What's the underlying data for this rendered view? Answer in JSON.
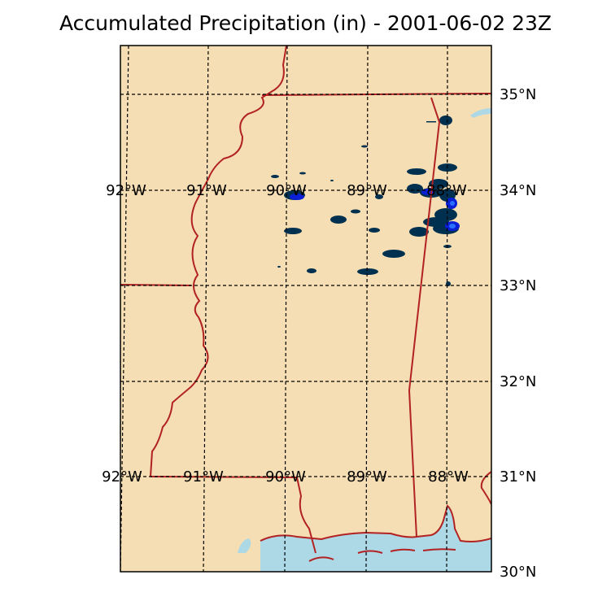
{
  "title": "Accumulated Precipitation (in) - 2001-06-02 23Z",
  "colors": {
    "land": "#f5deb3",
    "water": "#add8e6",
    "borders": "#b22222",
    "gridlines": "#000000",
    "precip_light": "#00304f",
    "precip_medium": "#0a1fd6",
    "precip_heavy": "#2a6fff"
  },
  "map": {
    "lat_labels": [
      "35°N",
      "34°N",
      "33°N",
      "32°N",
      "31°N",
      "30°N"
    ],
    "lon_labels_top": [
      "92°W",
      "91°W",
      "90°W",
      "89°W",
      "88°W"
    ],
    "lon_labels_bottom": [
      "92°W",
      "91°W",
      "90°W",
      "89°W",
      "88°W"
    ]
  }
}
